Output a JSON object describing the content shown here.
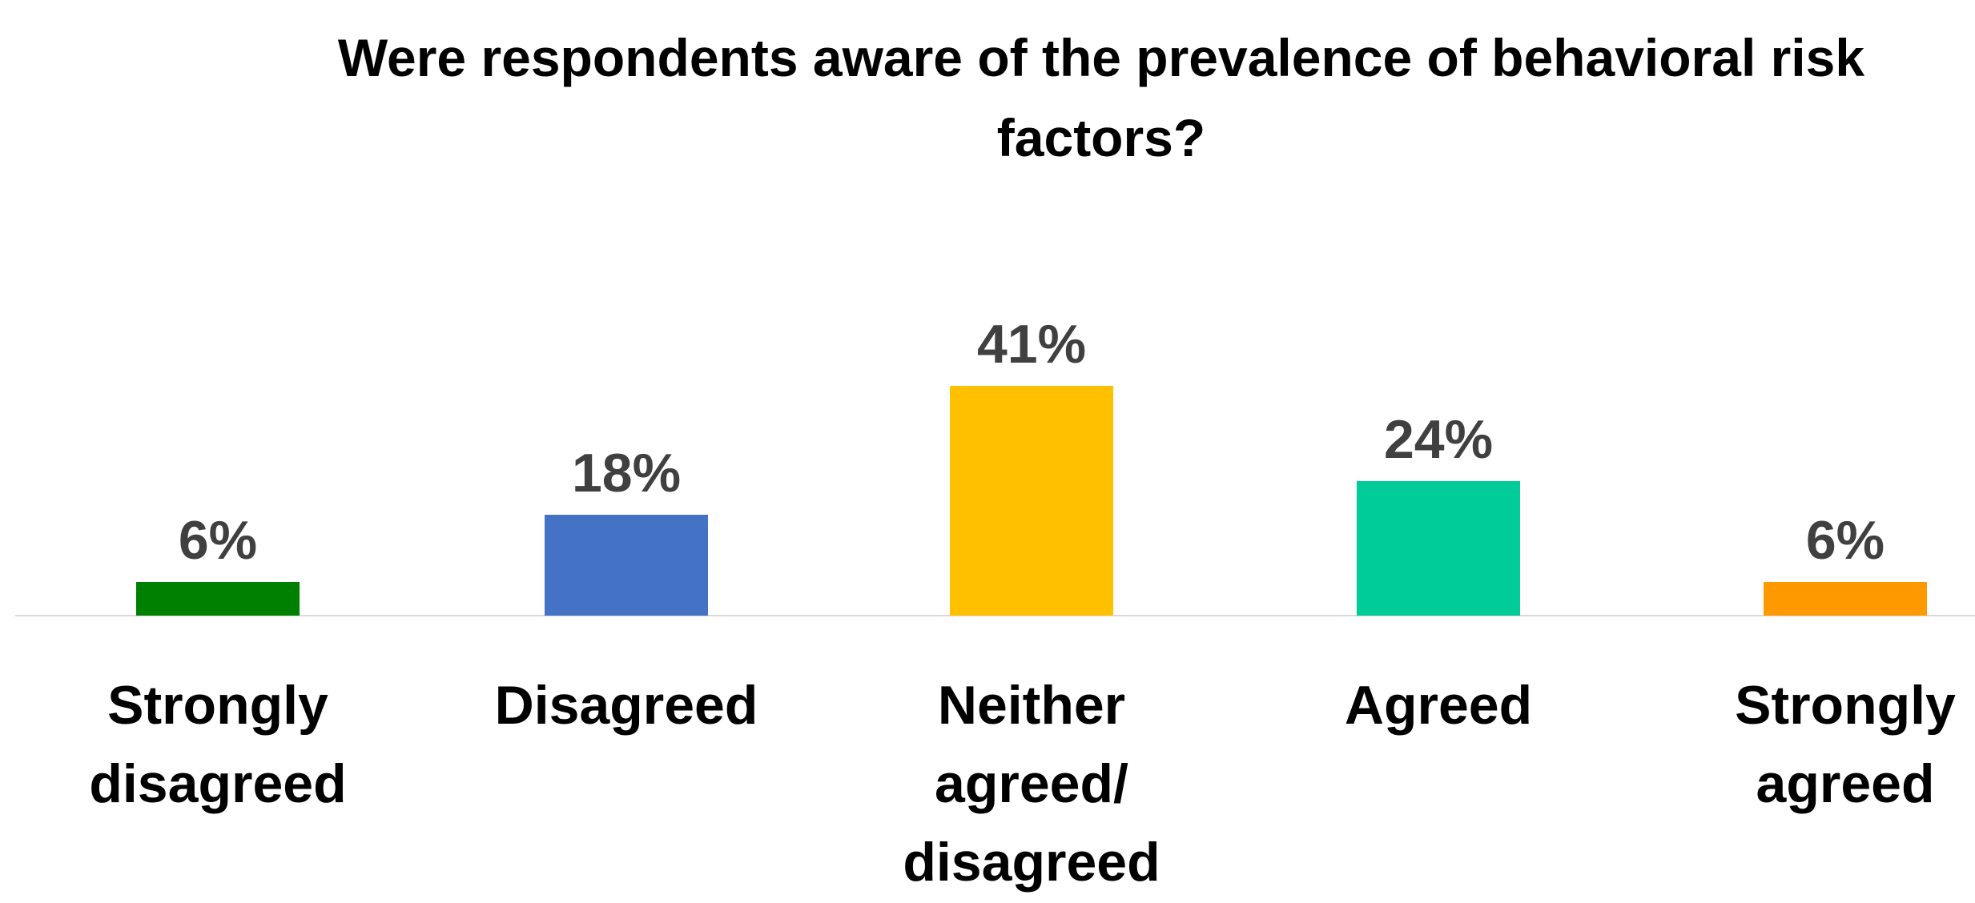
{
  "chart_data": {
    "type": "bar",
    "title": "Were respondents aware of the prevalence of behavioral risk factors?",
    "categories": [
      "Strongly disagreed",
      "Disagreed",
      "Neither agreed/ disagreed",
      "Agreed",
      "Strongly agreed"
    ],
    "values": [
      6,
      18,
      41,
      24,
      6
    ],
    "value_labels": [
      "6%",
      "18%",
      "41%",
      "24%",
      "6%"
    ],
    "colors": [
      "#008000",
      "#4472c4",
      "#ffc000",
      "#00cc99",
      "#ff9900"
    ]
  }
}
